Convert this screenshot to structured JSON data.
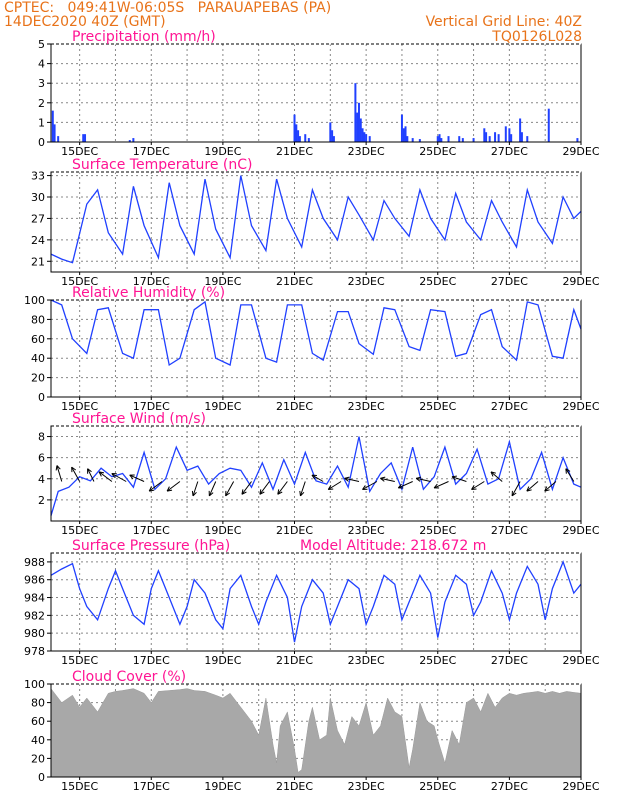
{
  "header": {
    "line1": "CPTEC:   049:41W-06:05S   PARAUAPEBAS (PA)",
    "line2": "14DEC2020 40Z (GMT)",
    "grid_note": "Vertical Grid Line: 40Z",
    "code": "TQ0126L028"
  },
  "x_labels": [
    "15DEC",
    "17DEC",
    "19DEC",
    "21DEC",
    "23DEC",
    "25DEC",
    "27DEC",
    "29DEC"
  ],
  "chart_data": [
    {
      "type": "bar",
      "title": "Precipitation (mm/h)",
      "ylim": [
        0,
        5
      ],
      "yticks": [
        0,
        1,
        2,
        3,
        4,
        5
      ],
      "x_start_day": 14.2,
      "x_end_day": 29,
      "bars": [
        [
          14.25,
          1.6
        ],
        [
          14.3,
          0.9
        ],
        [
          14.4,
          0.3
        ],
        [
          15.1,
          0.4
        ],
        [
          15.15,
          0.4
        ],
        [
          16.4,
          0.1
        ],
        [
          16.5,
          0.2
        ],
        [
          21.0,
          1.4
        ],
        [
          21.05,
          0.9
        ],
        [
          21.1,
          0.6
        ],
        [
          21.15,
          0.3
        ],
        [
          21.3,
          0.4
        ],
        [
          21.4,
          0.2
        ],
        [
          22.0,
          1.0
        ],
        [
          22.05,
          0.6
        ],
        [
          22.1,
          0.3
        ],
        [
          22.7,
          3.0
        ],
        [
          22.75,
          1.5
        ],
        [
          22.8,
          2.0
        ],
        [
          22.85,
          1.2
        ],
        [
          22.9,
          0.7
        ],
        [
          22.95,
          0.5
        ],
        [
          23.0,
          0.4
        ],
        [
          23.1,
          0.3
        ],
        [
          24.0,
          1.4
        ],
        [
          24.05,
          0.7
        ],
        [
          24.1,
          0.8
        ],
        [
          24.15,
          0.3
        ],
        [
          24.3,
          0.2
        ],
        [
          24.5,
          0.15
        ],
        [
          25.0,
          0.3
        ],
        [
          25.05,
          0.4
        ],
        [
          25.1,
          0.2
        ],
        [
          25.3,
          0.3
        ],
        [
          25.6,
          0.3
        ],
        [
          25.7,
          0.2
        ],
        [
          26.0,
          0.2
        ],
        [
          26.3,
          0.7
        ],
        [
          26.35,
          0.5
        ],
        [
          26.45,
          0.3
        ],
        [
          26.6,
          0.5
        ],
        [
          26.7,
          0.4
        ],
        [
          26.9,
          0.8
        ],
        [
          27.0,
          0.7
        ],
        [
          27.05,
          0.4
        ],
        [
          27.3,
          1.2
        ],
        [
          27.35,
          0.5
        ],
        [
          27.5,
          0.3
        ],
        [
          28.1,
          1.7
        ],
        [
          28.9,
          0.2
        ]
      ]
    },
    {
      "type": "line",
      "title": "Surface Temperature (nC)",
      "ylim": [
        19.5,
        33.5
      ],
      "yticks": [
        21,
        24,
        27,
        30,
        33
      ],
      "x_start_day": 14.2,
      "x_end_day": 29,
      "x": [
        14.2,
        14.5,
        14.8,
        15.2,
        15.5,
        15.8,
        16.2,
        16.5,
        16.8,
        17.2,
        17.5,
        17.8,
        18.2,
        18.5,
        18.8,
        19.2,
        19.5,
        19.8,
        20.2,
        20.5,
        20.8,
        21.2,
        21.5,
        21.8,
        22.2,
        22.5,
        22.8,
        23.2,
        23.5,
        23.8,
        24.2,
        24.5,
        24.8,
        25.2,
        25.5,
        25.8,
        26.2,
        26.5,
        26.8,
        27.2,
        27.5,
        27.8,
        28.2,
        28.5,
        28.8,
        29.0
      ],
      "y": [
        22.0,
        21.3,
        20.8,
        29.0,
        31.0,
        25.0,
        22.0,
        31.5,
        26.0,
        21.5,
        32.0,
        26.0,
        22.0,
        32.5,
        25.5,
        21.5,
        33.0,
        26.0,
        22.5,
        32.5,
        27.0,
        23.0,
        31.0,
        27.0,
        24.0,
        30.0,
        27.5,
        24.0,
        29.5,
        27.0,
        24.5,
        31.0,
        27.0,
        24.0,
        30.5,
        26.5,
        24.0,
        29.5,
        26.5,
        23.0,
        31.0,
        26.5,
        23.5,
        30.0,
        27.0,
        28.0
      ]
    },
    {
      "type": "line",
      "title": "Relative Humidity (%)",
      "ylim": [
        0,
        100
      ],
      "yticks": [
        0,
        20,
        40,
        60,
        80,
        100
      ],
      "x_start_day": 14.2,
      "x_end_day": 29,
      "x": [
        14.2,
        14.5,
        14.8,
        15.2,
        15.5,
        15.8,
        16.2,
        16.5,
        16.8,
        17.2,
        17.5,
        17.8,
        18.2,
        18.5,
        18.8,
        19.2,
        19.5,
        19.8,
        20.2,
        20.5,
        20.8,
        21.2,
        21.5,
        21.8,
        22.2,
        22.5,
        22.8,
        23.2,
        23.5,
        23.8,
        24.2,
        24.5,
        24.8,
        25.2,
        25.5,
        25.8,
        26.2,
        26.5,
        26.8,
        27.2,
        27.5,
        27.8,
        28.2,
        28.5,
        28.8,
        29.0
      ],
      "y": [
        100,
        95,
        60,
        45,
        90,
        92,
        45,
        40,
        90,
        90,
        33,
        40,
        90,
        98,
        40,
        33,
        95,
        95,
        40,
        36,
        95,
        95,
        45,
        38,
        88,
        88,
        55,
        44,
        92,
        90,
        52,
        48,
        90,
        88,
        42,
        45,
        85,
        90,
        52,
        38,
        98,
        95,
        42,
        40,
        90,
        70
      ]
    },
    {
      "type": "line",
      "title": "Surface Wind (m/s)",
      "ylim": [
        0,
        9
      ],
      "yticks": [
        2,
        4,
        6,
        8
      ],
      "x_start_day": 14.2,
      "x_end_day": 29,
      "x": [
        14.2,
        14.4,
        14.7,
        15.0,
        15.3,
        15.6,
        15.9,
        16.2,
        16.5,
        16.8,
        17.1,
        17.4,
        17.7,
        18.0,
        18.3,
        18.6,
        18.9,
        19.2,
        19.5,
        19.8,
        20.1,
        20.4,
        20.7,
        21.0,
        21.3,
        21.6,
        21.9,
        22.2,
        22.5,
        22.8,
        23.1,
        23.4,
        23.7,
        24.0,
        24.3,
        24.6,
        24.9,
        25.2,
        25.5,
        25.8,
        26.1,
        26.4,
        26.7,
        27.0,
        27.3,
        27.6,
        27.9,
        28.2,
        28.5,
        28.8,
        29.0
      ],
      "y": [
        0.5,
        2.8,
        3.2,
        4.2,
        3.8,
        5.0,
        4.2,
        4.5,
        3.2,
        6.5,
        3.0,
        4.0,
        7.0,
        4.8,
        5.2,
        3.5,
        4.5,
        5.0,
        4.8,
        3.2,
        5.5,
        3.0,
        5.8,
        3.5,
        6.5,
        3.8,
        3.5,
        5.2,
        3.2,
        8.0,
        2.8,
        4.5,
        5.5,
        3.0,
        7.0,
        3.0,
        4.2,
        7.0,
        3.5,
        4.5,
        6.8,
        3.5,
        4.0,
        7.5,
        3.0,
        4.0,
        6.5,
        3.0,
        6.0,
        3.5,
        3.2
      ],
      "arrows": [
        [
          14.5,
          -0.3,
          1
        ],
        [
          15.0,
          -0.5,
          0.9
        ],
        [
          15.4,
          -0.4,
          0.8
        ],
        [
          15.9,
          -0.8,
          0.6
        ],
        [
          16.3,
          -0.9,
          0.5
        ],
        [
          16.8,
          -0.9,
          0.4
        ],
        [
          17.3,
          -0.8,
          -0.6
        ],
        [
          17.8,
          -0.8,
          -0.6
        ],
        [
          18.3,
          -0.3,
          -0.9
        ],
        [
          18.8,
          -0.4,
          -0.9
        ],
        [
          19.3,
          -0.5,
          -0.9
        ],
        [
          19.8,
          -0.6,
          -0.8
        ],
        [
          20.3,
          -0.6,
          -0.8
        ],
        [
          20.8,
          -0.6,
          -0.8
        ],
        [
          21.3,
          -0.3,
          -0.9
        ],
        [
          21.8,
          -0.7,
          0.4
        ],
        [
          22.3,
          -0.8,
          -0.5
        ],
        [
          22.8,
          -0.9,
          0.2
        ],
        [
          23.3,
          -0.9,
          -0.5
        ],
        [
          23.8,
          -0.9,
          0.2
        ],
        [
          24.3,
          -0.9,
          -0.4
        ],
        [
          24.8,
          -0.9,
          0.2
        ],
        [
          25.3,
          -0.9,
          -0.4
        ],
        [
          25.8,
          -0.9,
          0.3
        ],
        [
          26.3,
          -0.8,
          -0.5
        ],
        [
          26.8,
          -0.7,
          0.6
        ],
        [
          27.3,
          -0.5,
          -0.9
        ],
        [
          27.8,
          -0.7,
          -0.6
        ],
        [
          28.3,
          -0.7,
          -0.6
        ],
        [
          28.8,
          -0.5,
          0.8
        ]
      ]
    },
    {
      "type": "line",
      "title": "Surface Pressure (hPa)",
      "annotation": "Model Altitude: 218.672 m",
      "ylim": [
        978,
        989
      ],
      "yticks": [
        978,
        980,
        982,
        984,
        986,
        988
      ],
      "x_start_day": 14.2,
      "x_end_day": 29,
      "x": [
        14.2,
        14.5,
        14.8,
        15.0,
        15.2,
        15.5,
        15.8,
        16.0,
        16.2,
        16.5,
        16.8,
        17.0,
        17.2,
        17.5,
        17.8,
        18.0,
        18.2,
        18.5,
        18.8,
        19.0,
        19.2,
        19.5,
        19.8,
        20.0,
        20.2,
        20.5,
        20.8,
        21.0,
        21.2,
        21.5,
        21.8,
        22.0,
        22.2,
        22.5,
        22.8,
        23.0,
        23.2,
        23.5,
        23.8,
        24.0,
        24.2,
        24.5,
        24.8,
        25.0,
        25.2,
        25.5,
        25.8,
        26.0,
        26.2,
        26.5,
        26.8,
        27.0,
        27.2,
        27.5,
        27.8,
        28.0,
        28.2,
        28.5,
        28.8,
        29.0
      ],
      "y": [
        986.5,
        987.2,
        987.8,
        985.0,
        983.0,
        981.5,
        985.0,
        987.0,
        985.0,
        982.0,
        981.0,
        985.0,
        987.0,
        984.0,
        981.0,
        983.0,
        986.0,
        984.5,
        981.5,
        980.5,
        985.0,
        986.5,
        983.0,
        981.0,
        983.5,
        986.5,
        984.0,
        979.0,
        983.0,
        986.0,
        984.5,
        981.0,
        983.0,
        986.0,
        985.0,
        981.0,
        983.0,
        986.5,
        985.5,
        981.5,
        983.5,
        986.5,
        984.5,
        979.5,
        983.5,
        986.5,
        985.5,
        982.0,
        983.5,
        987.0,
        984.5,
        981.5,
        984.5,
        987.5,
        985.5,
        981.5,
        985.0,
        988.0,
        984.5,
        985.5
      ]
    },
    {
      "type": "area",
      "title": "Cloud Cover (%)",
      "ylim": [
        0,
        100
      ],
      "yticks": [
        0,
        20,
        40,
        60,
        80,
        100
      ],
      "x_start_day": 14.2,
      "x_end_day": 29,
      "x": [
        14.2,
        14.5,
        14.8,
        15.0,
        15.2,
        15.5,
        15.8,
        16.0,
        16.2,
        16.5,
        16.8,
        17.0,
        17.2,
        17.5,
        17.8,
        18.0,
        18.2,
        18.5,
        18.8,
        19.0,
        19.2,
        19.4,
        19.6,
        19.8,
        20.0,
        20.2,
        20.4,
        20.5,
        20.6,
        20.8,
        21.0,
        21.1,
        21.2,
        21.4,
        21.5,
        21.7,
        21.9,
        22.0,
        22.2,
        22.4,
        22.6,
        22.8,
        23.0,
        23.2,
        23.4,
        23.6,
        23.8,
        24.0,
        24.2,
        24.3,
        24.5,
        24.7,
        24.9,
        25.0,
        25.2,
        25.4,
        25.6,
        25.8,
        26.0,
        26.2,
        26.4,
        26.6,
        26.8,
        27.0,
        27.2,
        27.4,
        27.6,
        27.8,
        28.0,
        28.2,
        28.4,
        28.6,
        28.8,
        29.0
      ],
      "y": [
        95,
        80,
        88,
        75,
        85,
        70,
        90,
        92,
        93,
        95,
        90,
        80,
        92,
        93,
        94,
        95,
        93,
        92,
        88,
        85,
        90,
        80,
        70,
        60,
        45,
        85,
        35,
        15,
        55,
        70,
        30,
        5,
        8,
        60,
        75,
        40,
        45,
        85,
        50,
        35,
        65,
        55,
        80,
        45,
        55,
        85,
        70,
        65,
        10,
        30,
        80,
        60,
        55,
        40,
        15,
        50,
        35,
        80,
        85,
        70,
        90,
        75,
        85,
        90,
        88,
        90,
        91,
        92,
        90,
        92,
        90,
        92,
        91,
        90
      ]
    }
  ]
}
